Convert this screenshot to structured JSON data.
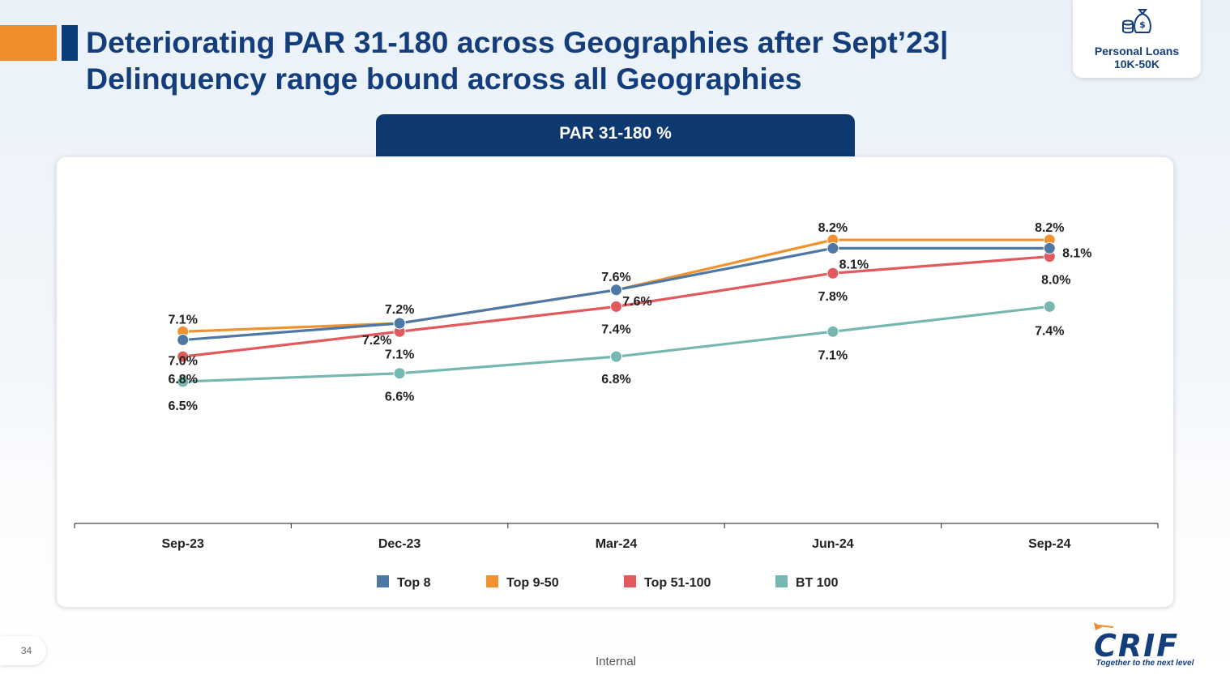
{
  "slide": {
    "title": "Deteriorating PAR 31-180 across Geographies after Sept’23| Delinquency range bound across all Geographies",
    "badge": {
      "line1": "Personal Loans",
      "line2": "10K-50K",
      "icon": "money-bag-coins-icon"
    },
    "page_number": "34",
    "footer_label": "Internal",
    "logo": {
      "text": "CRIF",
      "tagline": "Together to the next level"
    }
  },
  "colors": {
    "top8": "#4e78a6",
    "top9_50": "#f0922f",
    "top51_100": "#e05a5e",
    "bt100": "#76b8b1",
    "navy": "#0d3870"
  },
  "chart_data": {
    "type": "line",
    "title": "PAR 31-180 %",
    "categories": [
      "Sep-23",
      "Dec-23",
      "Mar-24",
      "Jun-24",
      "Sep-24"
    ],
    "xlabel": "",
    "ylabel": "",
    "ylim": [
      4.8,
      8.9
    ],
    "grid": false,
    "legend_position": "bottom",
    "series": [
      {
        "name": "Top 8",
        "color": "#4e78a6",
        "values": [
          7.0,
          7.2,
          7.6,
          8.1,
          8.1
        ],
        "labels": [
          "7.0%",
          "7.2%",
          "7.6%",
          "8.1%",
          "8.1%"
        ]
      },
      {
        "name": "Top 9-50",
        "color": "#f0922f",
        "values": [
          7.1,
          7.2,
          7.6,
          8.2,
          8.2
        ],
        "labels": [
          "7.1%",
          "7.2%",
          "7.6%",
          "8.2%",
          "8.2%"
        ]
      },
      {
        "name": "Top 51-100",
        "color": "#e05a5e",
        "values": [
          6.8,
          7.1,
          7.4,
          7.8,
          8.0
        ],
        "labels": [
          "6.8%",
          "7.1%",
          "7.4%",
          "7.8%",
          "8.0%"
        ]
      },
      {
        "name": "BT 100",
        "color": "#76b8b1",
        "values": [
          6.5,
          6.6,
          6.8,
          7.1,
          7.4
        ],
        "labels": [
          "6.5%",
          "6.6%",
          "6.8%",
          "7.1%",
          "7.4%"
        ]
      }
    ]
  }
}
